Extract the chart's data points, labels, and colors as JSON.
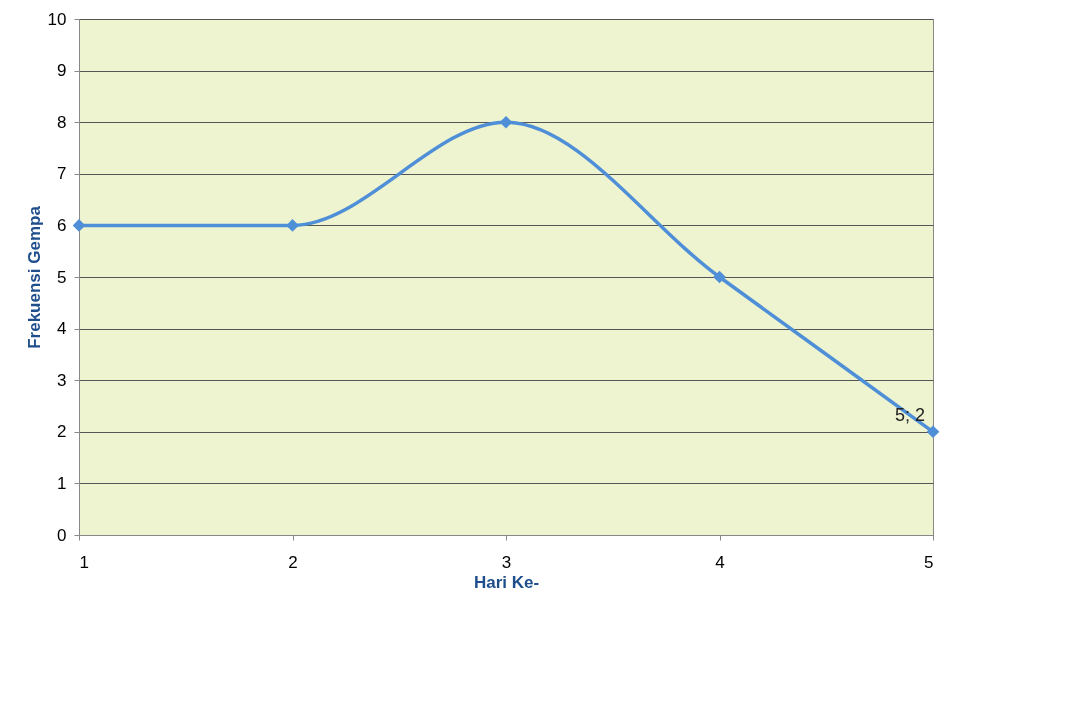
{
  "chart_data": {
    "type": "line",
    "xlabel": "Hari Ke-",
    "ylabel": "Frekuensi Gempa",
    "x": [
      1,
      2,
      3,
      4,
      5
    ],
    "series": [
      {
        "color": "#4f8fd8",
        "values": [
          6,
          6,
          8,
          5,
          2
        ]
      }
    ],
    "xlim": [
      1,
      5
    ],
    "xticks": [
      1,
      2,
      3,
      4,
      5
    ],
    "ylim": [
      0,
      10
    ],
    "yticks": [
      0,
      1,
      2,
      3,
      4,
      5,
      6,
      7,
      8,
      9,
      10
    ],
    "grid": "y",
    "marker": "diamond",
    "line_style": "solid",
    "annotations": [
      {
        "text": "5; 2",
        "x": 5,
        "y": 2
      }
    ]
  }
}
